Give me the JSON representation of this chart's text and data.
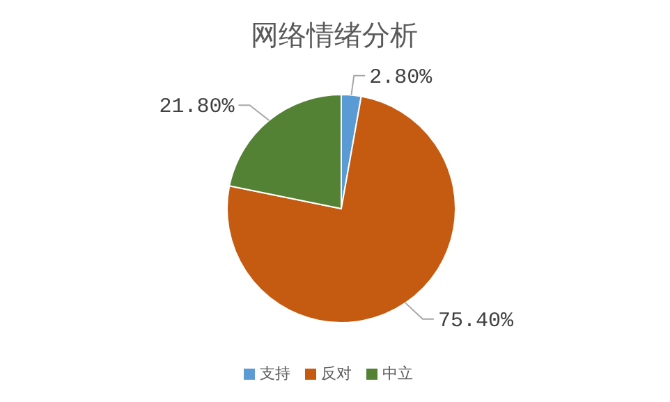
{
  "chart_data": {
    "type": "pie",
    "title": "网络情绪分析",
    "categories": [
      "支持",
      "反对",
      "中立"
    ],
    "values": [
      2.8,
      75.4,
      21.8
    ],
    "colors": [
      "#5b9bd5",
      "#c55a11",
      "#548235"
    ],
    "value_labels": [
      "2.80%",
      "75.40%",
      "21.80%"
    ],
    "legend": "bottom"
  }
}
